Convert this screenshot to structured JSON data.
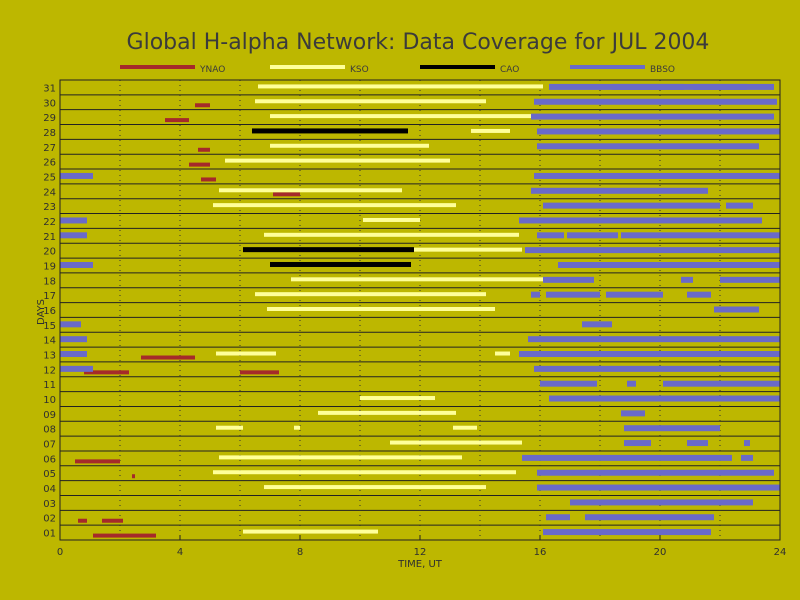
{
  "chart_data": {
    "type": "bar",
    "title": "Global H-alpha Network: Data Coverage for JUL 2004",
    "xlabel": "TIME, UT",
    "ylabel": "DAYS",
    "xlim": [
      0,
      24
    ],
    "ylim": [
      0.5,
      31.5
    ],
    "x_ticks": [
      "0",
      "4",
      "8",
      "12",
      "16",
      "20",
      "24"
    ],
    "y_ticks": [
      "01",
      "02",
      "03",
      "04",
      "05",
      "06",
      "07",
      "08",
      "09",
      "10",
      "11",
      "12",
      "13",
      "14",
      "15",
      "16",
      "17",
      "18",
      "19",
      "20",
      "21",
      "22",
      "23",
      "24",
      "25",
      "26",
      "27",
      "28",
      "29",
      "30",
      "31"
    ],
    "grid": true,
    "legend_placement": "top",
    "series": [
      {
        "name": "YNAO",
        "color": "#a52a2a",
        "segments": [
          {
            "day": 1,
            "intervals": [
              [
                1.1,
                3.2
              ]
            ]
          },
          {
            "day": 2,
            "intervals": [
              [
                0.6,
                0.9
              ],
              [
                1.4,
                2.1
              ]
            ]
          },
          {
            "day": 5,
            "intervals": [
              [
                2.4,
                2.5
              ]
            ]
          },
          {
            "day": 6,
            "intervals": [
              [
                0.5,
                2.0
              ]
            ]
          },
          {
            "day": 12,
            "intervals": [
              [
                0.8,
                2.3
              ],
              [
                6.0,
                7.3
              ]
            ]
          },
          {
            "day": 13,
            "intervals": [
              [
                2.7,
                4.5
              ]
            ]
          },
          {
            "day": 24,
            "intervals": [
              [
                7.1,
                8.0
              ]
            ]
          },
          {
            "day": 25,
            "intervals": [
              [
                4.7,
                5.2
              ]
            ]
          },
          {
            "day": 26,
            "intervals": [
              [
                4.3,
                5.0
              ]
            ]
          },
          {
            "day": 27,
            "intervals": [
              [
                4.6,
                5.0
              ]
            ]
          },
          {
            "day": 29,
            "intervals": [
              [
                3.5,
                4.3
              ]
            ]
          },
          {
            "day": 30,
            "intervals": [
              [
                4.5,
                5.0
              ]
            ]
          }
        ]
      },
      {
        "name": "KSO",
        "color": "#ffff99",
        "segments": [
          {
            "day": 1,
            "intervals": [
              [
                6.1,
                10.6
              ]
            ]
          },
          {
            "day": 4,
            "intervals": [
              [
                6.8,
                14.2
              ]
            ]
          },
          {
            "day": 5,
            "intervals": [
              [
                5.1,
                15.2
              ]
            ]
          },
          {
            "day": 6,
            "intervals": [
              [
                5.3,
                13.4
              ]
            ]
          },
          {
            "day": 7,
            "intervals": [
              [
                11.0,
                15.4
              ]
            ]
          },
          {
            "day": 8,
            "intervals": [
              [
                5.2,
                6.1
              ],
              [
                7.8,
                8.0
              ],
              [
                13.1,
                13.9
              ]
            ]
          },
          {
            "day": 9,
            "intervals": [
              [
                8.6,
                13.2
              ]
            ]
          },
          {
            "day": 10,
            "intervals": [
              [
                10.0,
                12.5
              ]
            ]
          },
          {
            "day": 12,
            "intervals": []
          },
          {
            "day": 13,
            "intervals": [
              [
                5.2,
                7.2
              ],
              [
                14.5,
                15.0
              ]
            ]
          },
          {
            "day": 16,
            "intervals": [
              [
                6.9,
                14.5
              ]
            ]
          },
          {
            "day": 17,
            "intervals": [
              [
                6.5,
                14.2
              ]
            ]
          },
          {
            "day": 18,
            "intervals": [
              [
                7.7,
                16.3
              ]
            ]
          },
          {
            "day": 19,
            "intervals": [
              [
                7.0,
                11.7
              ]
            ]
          },
          {
            "day": 20,
            "intervals": [
              [
                7.5,
                15.4
              ]
            ]
          },
          {
            "day": 21,
            "intervals": [
              [
                6.8,
                15.3
              ]
            ]
          },
          {
            "day": 22,
            "intervals": [
              [
                10.1,
                12.0
              ]
            ]
          },
          {
            "day": 23,
            "intervals": [
              [
                5.1,
                13.2
              ]
            ]
          },
          {
            "day": 24,
            "intervals": [
              [
                5.3,
                11.4
              ]
            ]
          },
          {
            "day": 26,
            "intervals": [
              [
                5.5,
                13.0
              ]
            ]
          },
          {
            "day": 27,
            "intervals": [
              [
                7.0,
                12.3
              ]
            ]
          },
          {
            "day": 28,
            "intervals": [
              [
                13.7,
                15.0
              ]
            ]
          },
          {
            "day": 29,
            "intervals": [
              [
                7.0,
                15.8
              ]
            ]
          },
          {
            "day": 30,
            "intervals": [
              [
                6.5,
                14.2
              ]
            ]
          },
          {
            "day": 31,
            "intervals": [
              [
                6.6,
                16.1
              ]
            ]
          }
        ]
      },
      {
        "name": "CAO",
        "color": "#000000",
        "segments": [
          {
            "day": 19,
            "intervals": [
              [
                7.0,
                11.7
              ]
            ]
          },
          {
            "day": 20,
            "intervals": [
              [
                6.1,
                11.8
              ]
            ]
          },
          {
            "day": 28,
            "intervals": [
              [
                6.4,
                11.6
              ]
            ]
          }
        ]
      },
      {
        "name": "BBSO",
        "color": "#6a6ac9",
        "segments": [
          {
            "day": 1,
            "intervals": [
              [
                16.1,
                21.7
              ]
            ]
          },
          {
            "day": 2,
            "intervals": [
              [
                16.2,
                17.0
              ],
              [
                17.5,
                21.8
              ]
            ]
          },
          {
            "day": 3,
            "intervals": [
              [
                17.0,
                23.1
              ]
            ]
          },
          {
            "day": 4,
            "intervals": [
              [
                15.9,
                24.0
              ]
            ]
          },
          {
            "day": 5,
            "intervals": [
              [
                15.9,
                23.8
              ]
            ]
          },
          {
            "day": 6,
            "intervals": [
              [
                15.4,
                22.4
              ],
              [
                22.7,
                23.1
              ]
            ]
          },
          {
            "day": 7,
            "intervals": [
              [
                18.8,
                19.7
              ],
              [
                20.9,
                21.6
              ],
              [
                22.8,
                23.0
              ]
            ]
          },
          {
            "day": 8,
            "intervals": [
              [
                18.8,
                22.0
              ]
            ]
          },
          {
            "day": 9,
            "intervals": [
              [
                18.7,
                19.5
              ]
            ]
          },
          {
            "day": 10,
            "intervals": [
              [
                16.3,
                24.0
              ]
            ]
          },
          {
            "day": 11,
            "intervals": [
              [
                16.0,
                17.9
              ],
              [
                18.9,
                19.2
              ],
              [
                20.1,
                24.0
              ]
            ]
          },
          {
            "day": 12,
            "intervals": [
              [
                0.0,
                1.1
              ],
              [
                15.8,
                24.0
              ]
            ]
          },
          {
            "day": 13,
            "intervals": [
              [
                0.0,
                0.9
              ],
              [
                15.3,
                24.0
              ]
            ]
          },
          {
            "day": 14,
            "intervals": [
              [
                0.0,
                0.9
              ],
              [
                15.6,
                24.0
              ]
            ]
          },
          {
            "day": 15,
            "intervals": [
              [
                0.0,
                0.7
              ],
              [
                17.4,
                18.4
              ]
            ]
          },
          {
            "day": 16,
            "intervals": [
              [
                21.8,
                23.3
              ]
            ]
          },
          {
            "day": 17,
            "intervals": [
              [
                15.7,
                16.0
              ],
              [
                16.2,
                18.0
              ],
              [
                18.2,
                20.1
              ],
              [
                20.9,
                21.7
              ]
            ]
          },
          {
            "day": 18,
            "intervals": [
              [
                16.1,
                17.8
              ],
              [
                20.7,
                21.1
              ],
              [
                22.0,
                24.0
              ]
            ]
          },
          {
            "day": 19,
            "intervals": [
              [
                0.0,
                1.1
              ],
              [
                16.6,
                24.0
              ]
            ]
          },
          {
            "day": 20,
            "intervals": [
              [
                15.5,
                24.0
              ]
            ]
          },
          {
            "day": 21,
            "intervals": [
              [
                0.0,
                0.9
              ],
              [
                15.9,
                16.8
              ],
              [
                16.9,
                18.6
              ],
              [
                18.7,
                24.0
              ]
            ]
          },
          {
            "day": 22,
            "intervals": [
              [
                0.0,
                0.9
              ],
              [
                15.3,
                23.4
              ]
            ]
          },
          {
            "day": 23,
            "intervals": [
              [
                16.1,
                22.0
              ],
              [
                22.2,
                23.1
              ]
            ]
          },
          {
            "day": 24,
            "intervals": [
              [
                15.7,
                21.6
              ]
            ]
          },
          {
            "day": 25,
            "intervals": [
              [
                0.0,
                1.1
              ],
              [
                15.8,
                24.0
              ]
            ]
          },
          {
            "day": 26,
            "intervals": []
          },
          {
            "day": 27,
            "intervals": [
              [
                15.9,
                23.3
              ]
            ]
          },
          {
            "day": 28,
            "intervals": [
              [
                15.9,
                24.0
              ]
            ]
          },
          {
            "day": 29,
            "intervals": [
              [
                15.7,
                23.8
              ]
            ]
          },
          {
            "day": 30,
            "intervals": [
              [
                15.8,
                23.9
              ]
            ]
          },
          {
            "day": 31,
            "intervals": [
              [
                16.3,
                23.8
              ],
              [
                18.4,
                20.8
              ],
              [
                21.1,
                22.9
              ]
            ]
          }
        ]
      }
    ]
  }
}
